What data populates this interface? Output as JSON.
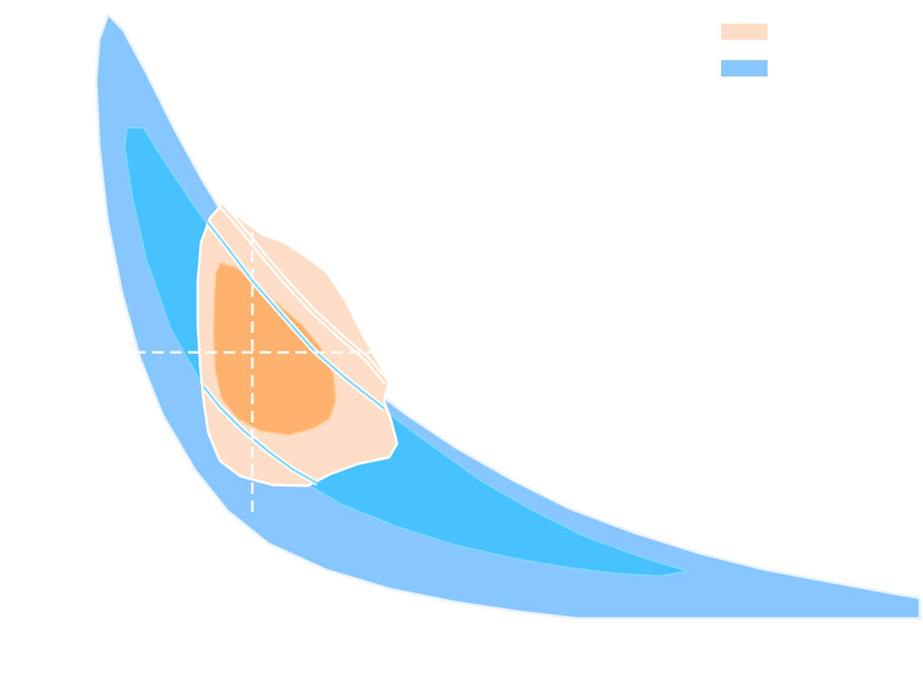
{
  "chart_data": {
    "type": "contour",
    "title": "",
    "xlabel": "",
    "ylabel": "",
    "grid": false,
    "legend_position": "top-right",
    "series": [
      {
        "name": "",
        "color": "#FFDEC8",
        "inner_color": "#FFB26D",
        "levels": [
          "outer",
          "inner"
        ]
      },
      {
        "name": "",
        "color": "#88C6FF",
        "inner_color": "#48C2FF",
        "levels": [
          "outer",
          "inner"
        ]
      }
    ],
    "reference_lines": {
      "color": "#ffffff",
      "style": "dashed"
    }
  }
}
